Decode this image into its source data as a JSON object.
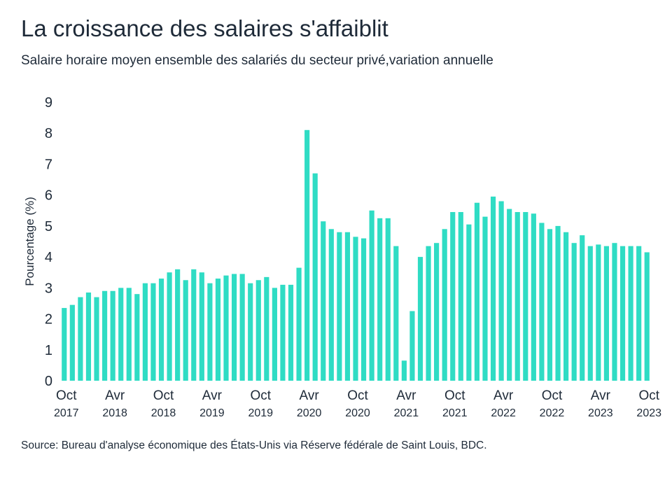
{
  "header": {
    "title": "La croissance des salaires s'affaiblit",
    "subtitle": "Salaire horaire moyen ensemble des salariés du secteur privé,variation annuelle"
  },
  "footer": {
    "source": "Source: Bureau d'analyse économique des États-Unis via Réserve fédérale de Saint Louis, BDC."
  },
  "colors": {
    "bar": "#2fdcc4",
    "text": "#1e2a38"
  },
  "chart_data": {
    "type": "bar",
    "ylabel": "Pourcentage (%)",
    "xlabel": "",
    "ylim": [
      0,
      9
    ],
    "yticks": [
      0,
      1,
      2,
      3,
      4,
      5,
      6,
      7,
      8,
      9
    ],
    "grid": false,
    "legend": "none",
    "x_tick_labels": [
      {
        "index": 0,
        "month": "Oct",
        "year": "2017"
      },
      {
        "index": 6,
        "month": "Avr",
        "year": "2018"
      },
      {
        "index": 12,
        "month": "Oct",
        "year": "2018"
      },
      {
        "index": 18,
        "month": "Avr",
        "year": "2019"
      },
      {
        "index": 24,
        "month": "Oct",
        "year": "2019"
      },
      {
        "index": 30,
        "month": "Avr",
        "year": "2020"
      },
      {
        "index": 36,
        "month": "Oct",
        "year": "2020"
      },
      {
        "index": 42,
        "month": "Avr",
        "year": "2021"
      },
      {
        "index": 48,
        "month": "Oct",
        "year": "2021"
      },
      {
        "index": 54,
        "month": "Avr",
        "year": "2022"
      },
      {
        "index": 60,
        "month": "Oct",
        "year": "2022"
      },
      {
        "index": 66,
        "month": "Avr",
        "year": "2023"
      },
      {
        "index": 72,
        "month": "Oct",
        "year": "2023"
      }
    ],
    "values": [
      2.35,
      2.45,
      2.7,
      2.85,
      2.7,
      2.9,
      2.9,
      3.0,
      3.0,
      2.8,
      3.15,
      3.15,
      3.3,
      3.5,
      3.6,
      3.25,
      3.6,
      3.5,
      3.15,
      3.3,
      3.4,
      3.45,
      3.45,
      3.15,
      3.25,
      3.35,
      3.0,
      3.1,
      3.1,
      3.65,
      8.1,
      6.7,
      5.15,
      4.9,
      4.8,
      4.8,
      4.65,
      4.6,
      5.5,
      5.25,
      5.25,
      4.35,
      0.65,
      2.25,
      4.0,
      4.35,
      4.45,
      4.9,
      5.45,
      5.45,
      5.05,
      5.75,
      5.3,
      5.95,
      5.8,
      5.55,
      5.45,
      5.45,
      5.4,
      5.1,
      4.9,
      5.0,
      4.8,
      4.45,
      4.7,
      4.35,
      4.4,
      4.35,
      4.45,
      4.35,
      4.35,
      4.35,
      4.15
    ]
  }
}
